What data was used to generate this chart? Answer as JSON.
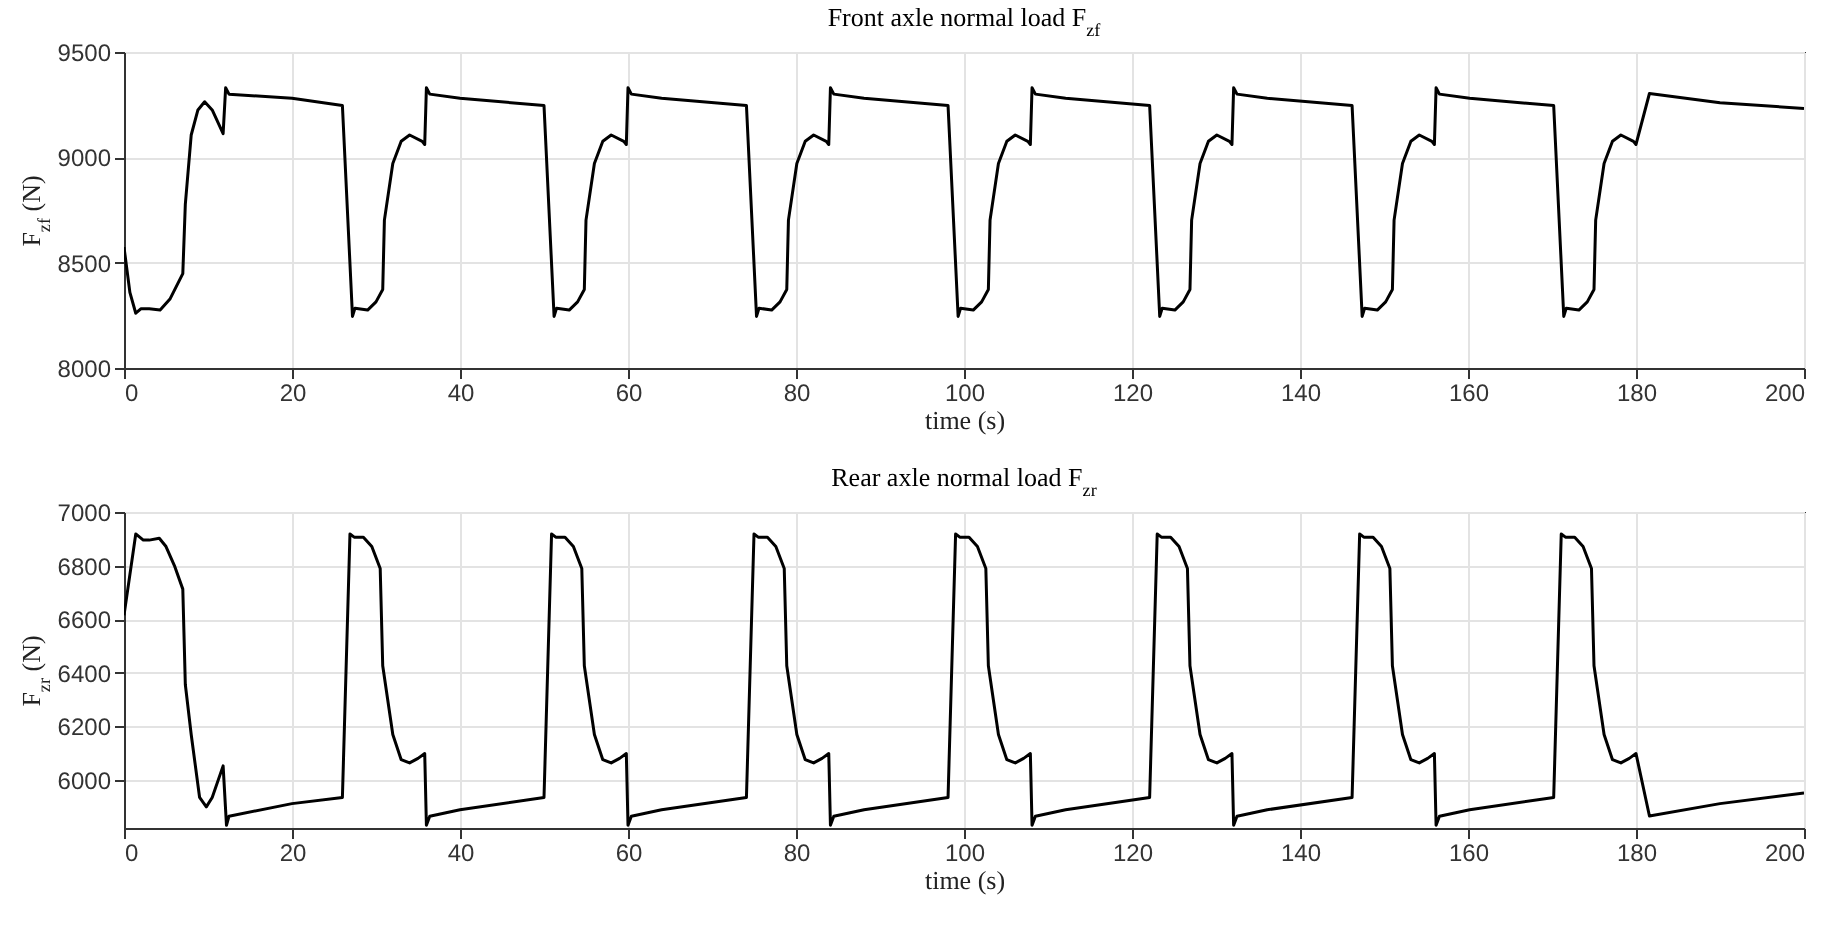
{
  "chart_data": [
    {
      "type": "line",
      "title": "Front axle normal load F$_{zf}$",
      "xlabel": "time (s)",
      "ylabel": "F$_{zf}$ (N)",
      "xlim": [
        0,
        200
      ],
      "ylim": [
        8000,
        9500
      ],
      "xticks": [
        0,
        20,
        40,
        60,
        80,
        100,
        120,
        140,
        160,
        180,
        200
      ],
      "yticks": [
        8000,
        8500,
        9000,
        9500
      ],
      "grid": true,
      "x": [
        0,
        0.7,
        1.4,
        2,
        3,
        4.3,
        5.5,
        7,
        7.3,
        8,
        8.8,
        9.6,
        10.5,
        11.8,
        12.1,
        12.5,
        20,
        26,
        27.2,
        27.5,
        29,
        30,
        30.8,
        31,
        32,
        33,
        34,
        35.5,
        35.8,
        36,
        36.4,
        40,
        50,
        51.2,
        51.5,
        53,
        54,
        54.8,
        55,
        56,
        57,
        58,
        59.5,
        59.8,
        60,
        60.4,
        64,
        74.1,
        75.3,
        75.6,
        77.1,
        78.1,
        78.9,
        79.1,
        80.1,
        81.1,
        82.1,
        83.6,
        83.9,
        84.1,
        84.5,
        88.1,
        98.1,
        99.3,
        99.6,
        101.1,
        102.1,
        102.9,
        103.1,
        104.1,
        105.1,
        106.1,
        107.6,
        107.9,
        108.1,
        108.5,
        112.1,
        122.1,
        123.3,
        123.6,
        125.1,
        126.1,
        126.9,
        127.1,
        128.1,
        129.1,
        130.1,
        131.6,
        131.9,
        132.1,
        132.5,
        136.1,
        146.2,
        147.4,
        147.7,
        149.2,
        150.2,
        151,
        151.2,
        152.2,
        153.2,
        154.2,
        155.7,
        156,
        156.2,
        156.6,
        160.2,
        170.2,
        171.4,
        171.7,
        173.2,
        174.2,
        175,
        175.2,
        176.2,
        177.2,
        178.2,
        179.7,
        180,
        181.6,
        190,
        200
      ],
      "series": [
        {
          "color": "#000000",
          "values": [
            8574,
            8359,
            8260,
            8281,
            8281,
            8275,
            8329,
            8448,
            8777,
            9106,
            9225,
            9264,
            9225,
            9112,
            9330,
            9300,
            9280,
            9246,
            8245,
            8284,
            8275,
            8314,
            8373,
            8702,
            8971,
            9076,
            9106,
            9076,
            9061,
            9330,
            9300,
            9280,
            9246,
            8245,
            8284,
            8275,
            8314,
            8373,
            8702,
            8971,
            9076,
            9106,
            9076,
            9061,
            9330,
            9300,
            9280,
            9246,
            8245,
            8284,
            8275,
            8314,
            8373,
            8702,
            8971,
            9076,
            9106,
            9076,
            9061,
            9330,
            9300,
            9280,
            9246,
            8245,
            8284,
            8275,
            8314,
            8373,
            8702,
            8971,
            9076,
            9106,
            9076,
            9061,
            9330,
            9300,
            9280,
            9246,
            8245,
            8284,
            8275,
            8314,
            8373,
            8702,
            8971,
            9076,
            9106,
            9076,
            9061,
            9330,
            9300,
            9280,
            9246,
            8245,
            8284,
            8275,
            8314,
            8373,
            8702,
            8971,
            9076,
            9106,
            9076,
            9061,
            9330,
            9300,
            9280,
            9246,
            8245,
            8284,
            8275,
            8314,
            8373,
            8702,
            8971,
            9076,
            9106,
            9076,
            9061,
            9303,
            9259,
            9232
          ]
        }
      ]
    },
    {
      "type": "line",
      "title": "Rear axle normal load F$_{zr}$",
      "xlabel": "time (s)",
      "ylabel": "F$_{zr}$ (N)",
      "xlim": [
        0,
        200
      ],
      "ylim": [
        5820,
        7000
      ],
      "xticks": [
        0,
        20,
        40,
        60,
        80,
        100,
        120,
        140,
        160,
        180,
        200
      ],
      "yticks": [
        6000,
        6200,
        6400,
        6600,
        6800,
        7000
      ],
      "grid": true,
      "x": [
        0,
        1.4,
        2.3,
        3,
        4.2,
        5,
        6,
        7,
        7.3,
        8,
        9,
        9.8,
        10.5,
        11.8,
        12.2,
        12.5,
        20,
        26,
        26.9,
        27.4,
        28.5,
        29.5,
        30.5,
        30.8,
        32,
        33,
        34,
        35,
        35.8,
        36,
        36.4,
        40,
        50,
        50.9,
        51.4,
        52.5,
        53.5,
        54.5,
        54.8,
        56,
        57,
        58,
        59,
        59.8,
        60,
        60.4,
        64,
        74.1,
        75,
        75.5,
        76.6,
        77.6,
        78.6,
        78.9,
        80.1,
        81.1,
        82.1,
        83.1,
        83.9,
        84.1,
        84.5,
        88.1,
        98.1,
        99,
        99.5,
        100.6,
        101.6,
        102.6,
        102.9,
        104.1,
        105.1,
        106.1,
        107.1,
        107.9,
        108.1,
        108.5,
        112.1,
        122.1,
        123,
        123.5,
        124.6,
        125.6,
        126.6,
        126.9,
        128.1,
        129.1,
        130.1,
        131.1,
        131.9,
        132.1,
        132.5,
        136.1,
        146.2,
        147.1,
        147.6,
        148.7,
        149.7,
        150.7,
        151,
        152.2,
        153.2,
        154.2,
        155.2,
        156,
        156.2,
        156.6,
        160.2,
        170.2,
        171.1,
        171.6,
        172.7,
        173.7,
        174.7,
        175,
        176.2,
        177.2,
        178.2,
        179.2,
        180,
        181.6,
        190,
        200
      ],
      "series": [
        {
          "color": "#000000",
          "values": [
            6614,
            6918,
            6895,
            6895,
            6902,
            6871,
            6800,
            6712,
            6356,
            6169,
            5934,
            5899,
            5934,
            6052,
            5830,
            5864,
            5911,
            5934,
            6918,
            6906,
            6906,
            6871,
            6789,
            6426,
            6169,
            6075,
            6063,
            6080,
            6098,
            5830,
            5864,
            5888,
            5934,
            6918,
            6906,
            6906,
            6871,
            6789,
            6426,
            6169,
            6075,
            6063,
            6080,
            6098,
            5830,
            5864,
            5888,
            5934,
            6918,
            6906,
            6906,
            6871,
            6789,
            6426,
            6169,
            6075,
            6063,
            6080,
            6098,
            5830,
            5864,
            5888,
            5934,
            6918,
            6906,
            6906,
            6871,
            6789,
            6426,
            6169,
            6075,
            6063,
            6080,
            6098,
            5830,
            5864,
            5888,
            5934,
            6918,
            6906,
            6906,
            6871,
            6789,
            6426,
            6169,
            6075,
            6063,
            6080,
            6098,
            5830,
            5864,
            5888,
            5934,
            6918,
            6906,
            6906,
            6871,
            6789,
            6426,
            6169,
            6075,
            6063,
            6080,
            6098,
            5830,
            5864,
            5888,
            5934,
            6918,
            6906,
            6906,
            6871,
            6789,
            6426,
            6169,
            6075,
            6063,
            6080,
            6098,
            5865,
            5911,
            5951
          ]
        }
      ]
    }
  ]
}
